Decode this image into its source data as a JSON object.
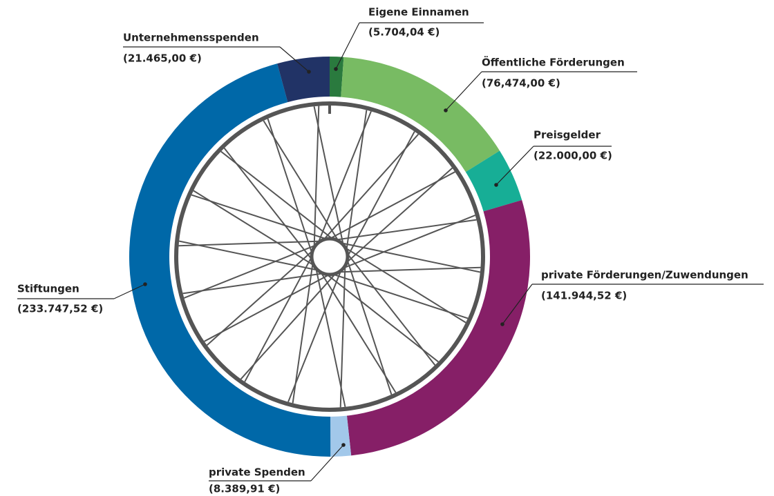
{
  "chart_data": {
    "type": "pie",
    "categories": [
      "Eigene Einnamen",
      "Öffentliche Förderungen",
      "Preisgelder",
      "private Förderungen/Zuwendungen",
      "private Spenden",
      "Stiftungen",
      "Unternehmensspenden"
    ],
    "values": [
      5704.04,
      76474.0,
      22000.0,
      141944.52,
      8389.91,
      233747.52,
      21465.0
    ],
    "value_labels": [
      "(5.704,04 €)",
      "(76,474,00 €)",
      "(22.000,00 €)",
      "(141.944,52 €)",
      "(8.389,91 €)",
      "(233.747,52 €)",
      "(21.465,00 €)"
    ],
    "colors": [
      "#2a7a3e",
      "#78bb63",
      "#17ae96",
      "#861f67",
      "#a2c8ea",
      "#0068a8",
      "#213366"
    ]
  }
}
